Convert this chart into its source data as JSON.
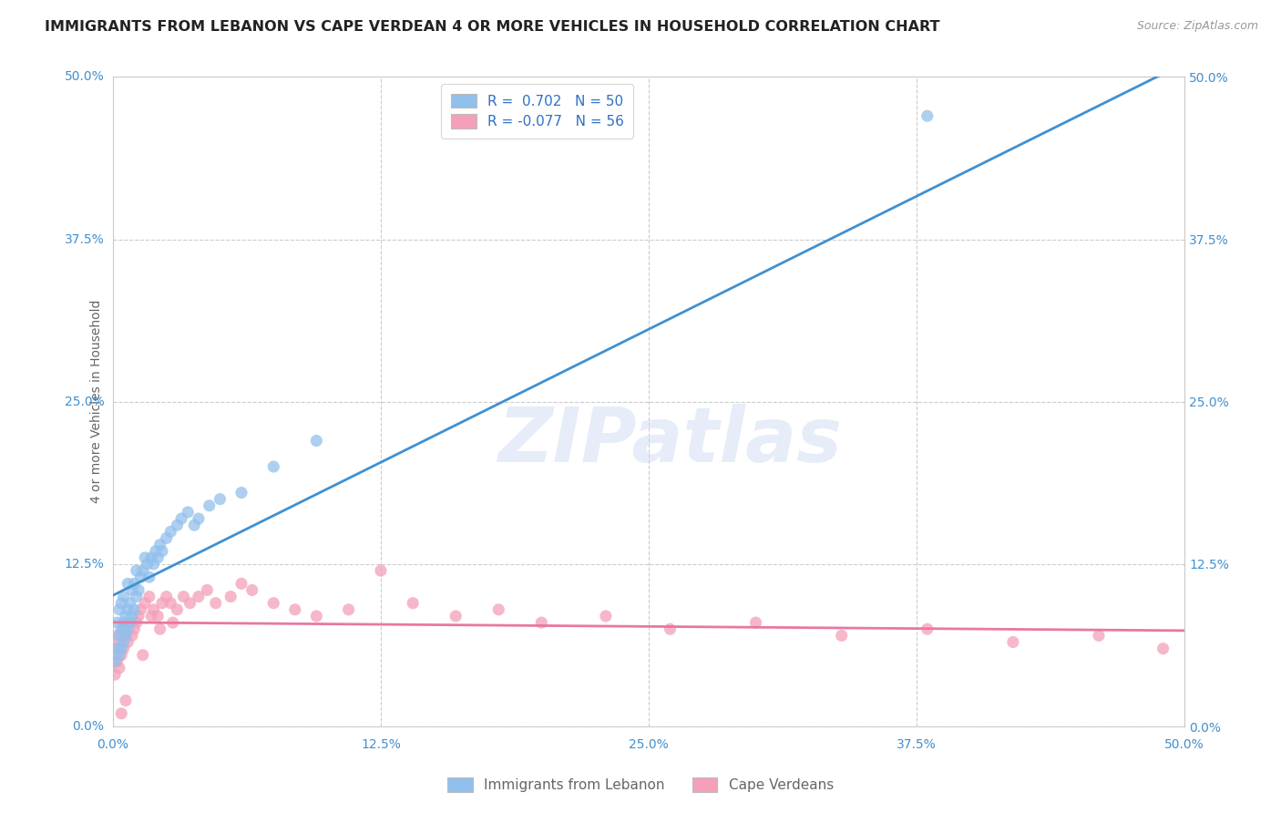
{
  "title": "IMMIGRANTS FROM LEBANON VS CAPE VERDEAN 4 OR MORE VEHICLES IN HOUSEHOLD CORRELATION CHART",
  "source": "Source: ZipAtlas.com",
  "ylabel": "4 or more Vehicles in Household",
  "xlim": [
    0.0,
    0.5
  ],
  "ylim": [
    0.0,
    0.5
  ],
  "xtick_labels": [
    "0.0%",
    "12.5%",
    "25.0%",
    "37.5%",
    "50.0%"
  ],
  "xtick_vals": [
    0.0,
    0.125,
    0.25,
    0.375,
    0.5
  ],
  "ytick_labels": [
    "0.0%",
    "12.5%",
    "25.0%",
    "37.5%",
    "50.0%"
  ],
  "ytick_vals": [
    0.0,
    0.125,
    0.25,
    0.375,
    0.5
  ],
  "blue_R": 0.702,
  "blue_N": 50,
  "pink_R": -0.077,
  "pink_N": 56,
  "blue_color": "#92C0EC",
  "pink_color": "#F4A0B8",
  "blue_line_color": "#4090D0",
  "pink_line_color": "#E878A0",
  "watermark": "ZIPatlas",
  "legend_label_blue": "Immigrants from Lebanon",
  "legend_label_pink": "Cape Verdeans",
  "blue_scatter_x": [
    0.001,
    0.002,
    0.002,
    0.003,
    0.003,
    0.003,
    0.004,
    0.004,
    0.004,
    0.005,
    0.005,
    0.005,
    0.006,
    0.006,
    0.007,
    0.007,
    0.007,
    0.008,
    0.008,
    0.009,
    0.009,
    0.01,
    0.01,
    0.011,
    0.011,
    0.012,
    0.013,
    0.014,
    0.015,
    0.016,
    0.017,
    0.018,
    0.019,
    0.02,
    0.021,
    0.022,
    0.023,
    0.025,
    0.027,
    0.03,
    0.032,
    0.035,
    0.038,
    0.04,
    0.045,
    0.05,
    0.06,
    0.075,
    0.095,
    0.38
  ],
  "blue_scatter_y": [
    0.05,
    0.06,
    0.08,
    0.055,
    0.07,
    0.09,
    0.06,
    0.075,
    0.095,
    0.065,
    0.08,
    0.1,
    0.07,
    0.085,
    0.075,
    0.09,
    0.11,
    0.08,
    0.095,
    0.085,
    0.105,
    0.09,
    0.11,
    0.1,
    0.12,
    0.105,
    0.115,
    0.12,
    0.13,
    0.125,
    0.115,
    0.13,
    0.125,
    0.135,
    0.13,
    0.14,
    0.135,
    0.145,
    0.15,
    0.155,
    0.16,
    0.165,
    0.155,
    0.16,
    0.17,
    0.175,
    0.18,
    0.2,
    0.22,
    0.47
  ],
  "pink_scatter_x": [
    0.001,
    0.001,
    0.002,
    0.002,
    0.003,
    0.003,
    0.004,
    0.005,
    0.005,
    0.006,
    0.007,
    0.008,
    0.009,
    0.01,
    0.011,
    0.012,
    0.013,
    0.015,
    0.017,
    0.019,
    0.021,
    0.023,
    0.025,
    0.027,
    0.03,
    0.033,
    0.036,
    0.04,
    0.044,
    0.048,
    0.055,
    0.06,
    0.065,
    0.075,
    0.085,
    0.095,
    0.11,
    0.125,
    0.14,
    0.16,
    0.18,
    0.2,
    0.23,
    0.26,
    0.3,
    0.34,
    0.38,
    0.42,
    0.46,
    0.49,
    0.004,
    0.006,
    0.014,
    0.018,
    0.022,
    0.028
  ],
  "pink_scatter_y": [
    0.04,
    0.06,
    0.05,
    0.07,
    0.045,
    0.065,
    0.055,
    0.06,
    0.075,
    0.07,
    0.065,
    0.08,
    0.07,
    0.075,
    0.08,
    0.085,
    0.09,
    0.095,
    0.1,
    0.09,
    0.085,
    0.095,
    0.1,
    0.095,
    0.09,
    0.1,
    0.095,
    0.1,
    0.105,
    0.095,
    0.1,
    0.11,
    0.105,
    0.095,
    0.09,
    0.085,
    0.09,
    0.12,
    0.095,
    0.085,
    0.09,
    0.08,
    0.085,
    0.075,
    0.08,
    0.07,
    0.075,
    0.065,
    0.07,
    0.06,
    0.01,
    0.02,
    0.055,
    0.085,
    0.075,
    0.08
  ],
  "background_color": "#FFFFFF",
  "title_fontsize": 11.5,
  "axis_label_fontsize": 10,
  "tick_fontsize": 10,
  "watermark_fontsize": 60,
  "watermark_color": "#C8D8F0",
  "watermark_alpha": 0.45
}
